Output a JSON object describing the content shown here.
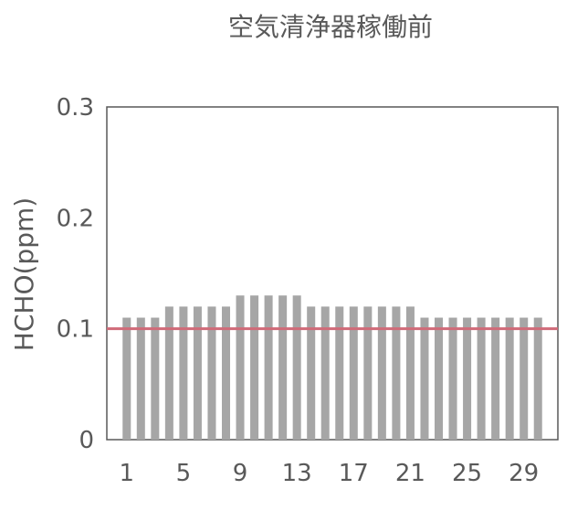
{
  "chart_data": {
    "type": "bar",
    "title": "空気清浄器稼働前",
    "xlabel": "",
    "ylabel": "HCHO(ppm)",
    "ylim": [
      0,
      0.3
    ],
    "yticks": [
      "0",
      "0.1",
      "0.2",
      "0.3"
    ],
    "ytick_values": [
      0,
      0.1,
      0.2,
      0.3
    ],
    "xtick_labels": [
      "1",
      "5",
      "9",
      "13",
      "17",
      "21",
      "25",
      "29"
    ],
    "xtick_values": [
      1,
      5,
      9,
      13,
      17,
      21,
      25,
      29
    ],
    "categories": [
      1,
      2,
      3,
      4,
      5,
      6,
      7,
      8,
      9,
      10,
      11,
      12,
      13,
      14,
      15,
      16,
      17,
      18,
      19,
      20,
      21,
      22,
      23,
      24,
      25,
      26,
      27,
      28,
      29,
      30
    ],
    "values": [
      0.11,
      0.11,
      0.11,
      0.12,
      0.12,
      0.12,
      0.12,
      0.12,
      0.13,
      0.13,
      0.13,
      0.13,
      0.13,
      0.12,
      0.12,
      0.12,
      0.12,
      0.12,
      0.12,
      0.12,
      0.12,
      0.11,
      0.11,
      0.11,
      0.11,
      0.11,
      0.11,
      0.11,
      0.11,
      0.11
    ],
    "reference_line": 0.1,
    "bar_color": "#a6a6a6",
    "reference_color": "#d06a78",
    "axis_color": "#595959",
    "grid": false
  }
}
